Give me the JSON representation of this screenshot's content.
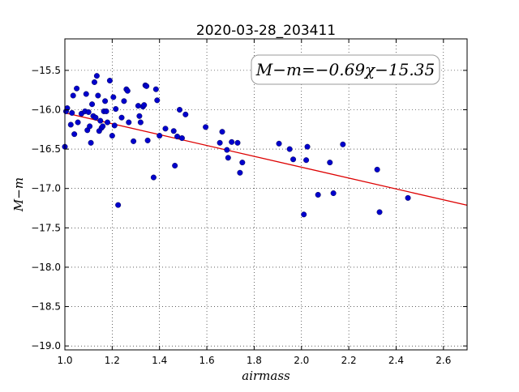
{
  "chart_data": {
    "type": "scatter",
    "title": "2020-03-28_203411",
    "xlabel": "airmass",
    "ylabel": "M−m",
    "xlim": [
      1.0,
      2.7
    ],
    "ylim": [
      -19.05,
      -15.1
    ],
    "y_inverted": true,
    "grid": true,
    "xticks": [
      1.0,
      1.2,
      1.4,
      1.6,
      1.8,
      2.0,
      2.2,
      2.4,
      2.6
    ],
    "xtick_labels": [
      "1.0",
      "1.2",
      "1.4",
      "1.6",
      "1.8",
      "2.0",
      "2.2",
      "2.4",
      "2.6"
    ],
    "yticks": [
      -15.5,
      -16.0,
      -16.5,
      -17.0,
      -17.5,
      -18.0,
      -18.5,
      -19.0
    ],
    "ytick_labels": [
      "−15.5",
      "−16.0",
      "−16.5",
      "−17.0",
      "−17.5",
      "−18.0",
      "−18.5",
      "−19.0"
    ],
    "annotation": "M−m=−0.69χ−15.35",
    "annotation_placement": "top-right",
    "fit": {
      "slope": -0.69,
      "intercept": -15.35,
      "color": "#dd0000"
    },
    "marker_color": "#0000cc",
    "points": [
      [
        1.0,
        -16.47
      ],
      [
        1.005,
        -16.02
      ],
      [
        1.01,
        -15.98
      ],
      [
        1.025,
        -16.19
      ],
      [
        1.03,
        -16.04
      ],
      [
        1.035,
        -15.82
      ],
      [
        1.04,
        -16.31
      ],
      [
        1.05,
        -15.73
      ],
      [
        1.055,
        -16.16
      ],
      [
        1.07,
        -16.05
      ],
      [
        1.085,
        -16.02
      ],
      [
        1.09,
        -15.8
      ],
      [
        1.095,
        -16.26
      ],
      [
        1.1,
        -16.03
      ],
      [
        1.105,
        -16.21
      ],
      [
        1.11,
        -16.42
      ],
      [
        1.115,
        -15.93
      ],
      [
        1.12,
        -16.08
      ],
      [
        1.125,
        -15.65
      ],
      [
        1.13,
        -16.1
      ],
      [
        1.135,
        -15.57
      ],
      [
        1.14,
        -15.82
      ],
      [
        1.145,
        -16.27
      ],
      [
        1.15,
        -16.14
      ],
      [
        1.155,
        -16.23
      ],
      [
        1.16,
        -16.21
      ],
      [
        1.165,
        -16.02
      ],
      [
        1.17,
        -15.89
      ],
      [
        1.175,
        -16.02
      ],
      [
        1.18,
        -16.16
      ],
      [
        1.19,
        -15.63
      ],
      [
        1.2,
        -16.33
      ],
      [
        1.205,
        -15.84
      ],
      [
        1.21,
        -16.2
      ],
      [
        1.215,
        -15.99
      ],
      [
        1.225,
        -17.21
      ],
      [
        1.24,
        -16.1
      ],
      [
        1.25,
        -15.89
      ],
      [
        1.26,
        -15.74
      ],
      [
        1.265,
        -15.76
      ],
      [
        1.27,
        -16.16
      ],
      [
        1.29,
        -16.4
      ],
      [
        1.31,
        -15.95
      ],
      [
        1.315,
        -16.08
      ],
      [
        1.32,
        -16.16
      ],
      [
        1.33,
        -15.96
      ],
      [
        1.335,
        -15.94
      ],
      [
        1.34,
        -15.69
      ],
      [
        1.345,
        -15.7
      ],
      [
        1.35,
        -16.39
      ],
      [
        1.375,
        -16.86
      ],
      [
        1.385,
        -15.74
      ],
      [
        1.39,
        -15.88
      ],
      [
        1.4,
        -16.33
      ],
      [
        1.425,
        -16.24
      ],
      [
        1.46,
        -16.27
      ],
      [
        1.465,
        -16.71
      ],
      [
        1.475,
        -16.34
      ],
      [
        1.485,
        -16.0
      ],
      [
        1.495,
        -16.36
      ],
      [
        1.51,
        -16.06
      ],
      [
        1.595,
        -16.22
      ],
      [
        1.655,
        -16.42
      ],
      [
        1.665,
        -16.28
      ],
      [
        1.685,
        -16.51
      ],
      [
        1.69,
        -16.61
      ],
      [
        1.705,
        -16.41
      ],
      [
        1.73,
        -16.42
      ],
      [
        1.74,
        -16.8
      ],
      [
        1.75,
        -16.67
      ],
      [
        1.905,
        -16.43
      ],
      [
        1.95,
        -16.5
      ],
      [
        1.965,
        -16.63
      ],
      [
        2.01,
        -17.33
      ],
      [
        2.02,
        -16.64
      ],
      [
        2.025,
        -16.47
      ],
      [
        2.07,
        -17.08
      ],
      [
        2.12,
        -16.67
      ],
      [
        2.135,
        -17.06
      ],
      [
        2.175,
        -16.44
      ],
      [
        2.32,
        -16.76
      ],
      [
        2.33,
        -17.3
      ],
      [
        2.45,
        -17.12
      ]
    ]
  }
}
